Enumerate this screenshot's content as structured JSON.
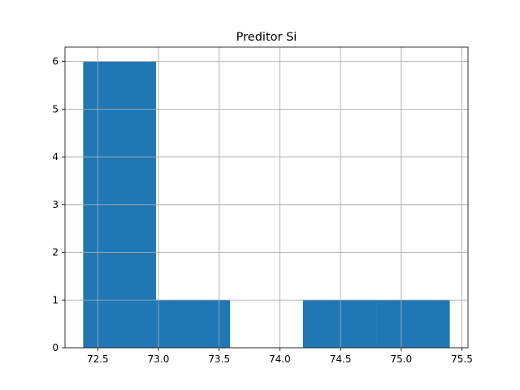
{
  "chart_data": {
    "type": "bar",
    "title": "Preditor Si",
    "xlabel": "",
    "ylabel": "",
    "bins": [
      {
        "start": 72.38,
        "end": 72.98,
        "count": 6
      },
      {
        "start": 72.98,
        "end": 73.59,
        "count": 1
      },
      {
        "start": 73.59,
        "end": 74.19,
        "count": 0
      },
      {
        "start": 74.19,
        "end": 74.8,
        "count": 1
      },
      {
        "start": 74.8,
        "end": 75.4,
        "count": 1
      }
    ],
    "xlim": [
      72.23,
      75.55
    ],
    "ylim": [
      0,
      6.3
    ],
    "xticks": [
      {
        "value": 72.5,
        "label": "72.5"
      },
      {
        "value": 73.0,
        "label": "73.0"
      },
      {
        "value": 73.5,
        "label": "73.5"
      },
      {
        "value": 74.0,
        "label": "74.0"
      },
      {
        "value": 74.5,
        "label": "74.5"
      },
      {
        "value": 75.0,
        "label": "75.0"
      },
      {
        "value": 75.5,
        "label": "75.5"
      }
    ],
    "yticks": [
      {
        "value": 0,
        "label": "0"
      },
      {
        "value": 1,
        "label": "1"
      },
      {
        "value": 2,
        "label": "2"
      },
      {
        "value": 3,
        "label": "3"
      },
      {
        "value": 4,
        "label": "4"
      },
      {
        "value": 5,
        "label": "5"
      },
      {
        "value": 6,
        "label": "6"
      }
    ],
    "grid": true,
    "bar_color": "#1f77b4"
  }
}
